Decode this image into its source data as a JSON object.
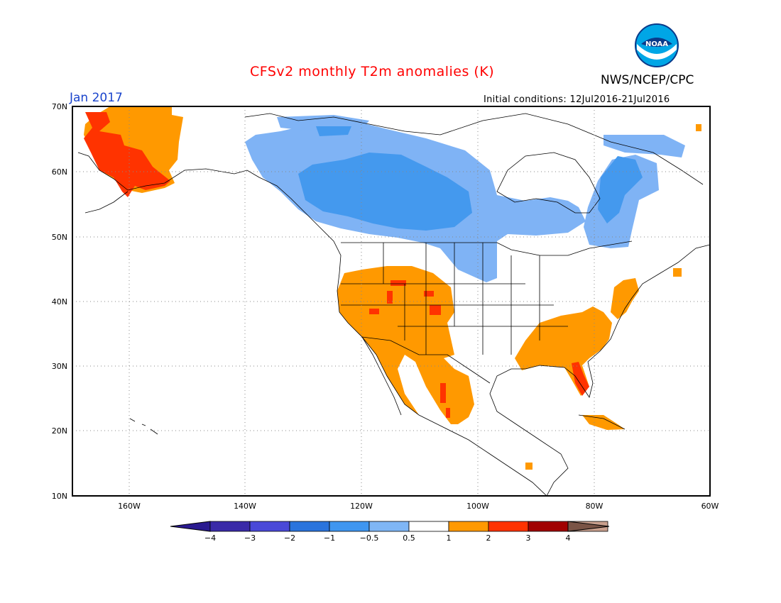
{
  "header": {
    "title": "CFSv2 monthly T2m anomalies (K)",
    "agency": "NWS/NCEP/CPC",
    "period": "Jan 2017",
    "initial_conditions": "Initial conditions: 12Jul2016-21Jul2016",
    "logo_text": "NOAA"
  },
  "colors": {
    "title": "#ff0000",
    "period": "#1a44cc",
    "lt_blue": "#7fb3f5",
    "blue": "#4499ee",
    "orange": "#ff9900",
    "red_orange": "#ff3300"
  },
  "map": {
    "lon_range": [
      -170,
      -60
    ],
    "lat_range": [
      10,
      70
    ],
    "lon_ticks": [
      "160W",
      "140W",
      "120W",
      "100W",
      "80W",
      "60W"
    ],
    "lat_ticks": [
      "70N",
      "60N",
      "50N",
      "40N",
      "30N",
      "20N",
      "10N"
    ]
  },
  "colorbar": {
    "labels": [
      "−4",
      "−3",
      "−2",
      "−1",
      "−0.5",
      "0.5",
      "1",
      "2",
      "3",
      "4"
    ],
    "colors": [
      "#3a2aa8",
      "#4a49d8",
      "#2a74dd",
      "#3f96f0",
      "#7fb6f5",
      "#ffffff",
      "#ff9900",
      "#ff3300",
      "#a10000",
      "#c9a08e"
    ],
    "low_end_color": "#2a1a90",
    "high_end_color": "#7a5446"
  }
}
